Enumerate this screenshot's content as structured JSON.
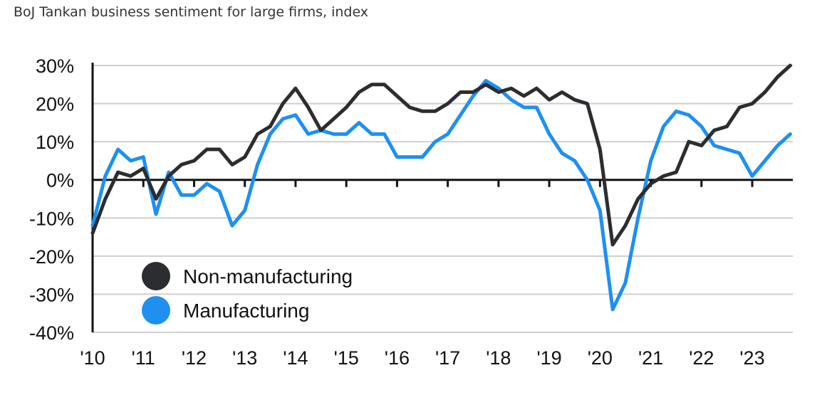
{
  "chart_data": {
    "type": "line",
    "title": "BoJ Tankan business sentiment for large firms, index",
    "xlabel": "",
    "ylabel": "",
    "ylim": [
      -40,
      30
    ],
    "y_ticks": [
      30,
      20,
      10,
      0,
      -10,
      -20,
      -30,
      -40
    ],
    "y_tick_labels": [
      "30%",
      "20%",
      "10%",
      "0%",
      "-10%",
      "-20%",
      "-30%",
      "-40%"
    ],
    "x_ticks": [
      2010,
      2011,
      2012,
      2013,
      2014,
      2015,
      2016,
      2017,
      2018,
      2019,
      2020,
      2021,
      2022,
      2023
    ],
    "x_tick_labels": [
      "'10",
      "'11",
      "'12",
      "'13",
      "'14",
      "'15",
      "'16",
      "'17",
      "'18",
      "'19",
      "'20",
      "'21",
      "'22",
      "'23"
    ],
    "xlim": [
      2010,
      2023.8
    ],
    "x": [
      2010.0,
      2010.25,
      2010.5,
      2010.75,
      2011.0,
      2011.25,
      2011.5,
      2011.75,
      2012.0,
      2012.25,
      2012.5,
      2012.75,
      2013.0,
      2013.25,
      2013.5,
      2013.75,
      2014.0,
      2014.25,
      2014.5,
      2014.75,
      2015.0,
      2015.25,
      2015.5,
      2015.75,
      2016.0,
      2016.25,
      2016.5,
      2016.75,
      2017.0,
      2017.25,
      2017.5,
      2017.75,
      2018.0,
      2018.25,
      2018.5,
      2018.75,
      2019.0,
      2019.25,
      2019.5,
      2019.75,
      2020.0,
      2020.25,
      2020.5,
      2020.75,
      2021.0,
      2021.25,
      2021.5,
      2021.75,
      2022.0,
      2022.25,
      2022.5,
      2022.75,
      2023.0,
      2023.25,
      2023.5,
      2023.75
    ],
    "series": [
      {
        "name": "Non-manufacturing",
        "color": "#2b2d30",
        "values": [
          -14,
          -5,
          2,
          1,
          3,
          -5,
          1,
          4,
          5,
          8,
          8,
          4,
          6,
          12,
          14,
          20,
          24,
          19,
          13,
          16,
          19,
          23,
          25,
          25,
          22,
          19,
          18,
          18,
          20,
          23,
          23,
          25,
          23,
          24,
          22,
          24,
          21,
          23,
          21,
          20,
          8,
          -17,
          -12,
          -5,
          -1,
          1,
          2,
          10,
          9,
          13,
          14,
          19,
          20,
          23,
          27,
          30
        ]
      },
      {
        "name": "Manufacturing",
        "color": "#1e90f0",
        "values": [
          -12,
          1,
          8,
          5,
          6,
          -9,
          2,
          -4,
          -4,
          -1,
          -3,
          -12,
          -8,
          4,
          12,
          16,
          17,
          12,
          13,
          12,
          12,
          15,
          12,
          12,
          6,
          6,
          6,
          10,
          12,
          17,
          22,
          26,
          24,
          21,
          19,
          19,
          12,
          7,
          5,
          0,
          -8,
          -34,
          -27,
          -10,
          5,
          14,
          18,
          17,
          14,
          9,
          8,
          7,
          1,
          5,
          9,
          12
        ]
      }
    ],
    "legend": {
      "position": "bottom-left",
      "items": [
        "Non-manufacturing",
        "Manufacturing"
      ]
    },
    "grid": true
  }
}
